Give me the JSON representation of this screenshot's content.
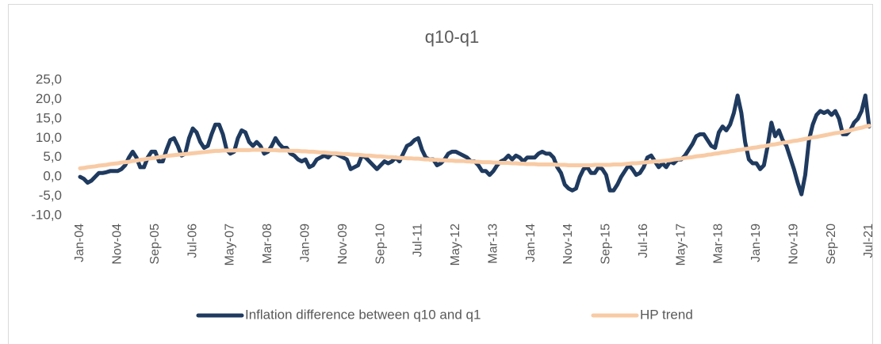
{
  "chart_data": {
    "type": "line",
    "title": "q10-q1",
    "categories": [
      "Jan-04",
      null,
      null,
      null,
      null,
      null,
      null,
      null,
      null,
      null,
      "Nov-04",
      null,
      null,
      null,
      null,
      null,
      null,
      null,
      null,
      null,
      "Sep-05",
      null,
      null,
      null,
      null,
      null,
      null,
      null,
      null,
      null,
      "Jul-06",
      null,
      null,
      null,
      null,
      null,
      null,
      null,
      null,
      null,
      "May-07",
      null,
      null,
      null,
      null,
      null,
      null,
      null,
      null,
      null,
      "Mar-08",
      null,
      null,
      null,
      null,
      null,
      null,
      null,
      null,
      null,
      "Jan-09",
      null,
      null,
      null,
      null,
      null,
      null,
      null,
      null,
      null,
      "Nov-09",
      null,
      null,
      null,
      null,
      null,
      null,
      null,
      null,
      null,
      "Sep-10",
      null,
      null,
      null,
      null,
      null,
      null,
      null,
      null,
      null,
      "Jul-11",
      null,
      null,
      null,
      null,
      null,
      null,
      null,
      null,
      null,
      "May-12",
      null,
      null,
      null,
      null,
      null,
      null,
      null,
      null,
      null,
      "Mar-13",
      null,
      null,
      null,
      null,
      null,
      null,
      null,
      null,
      null,
      "Jan-14",
      null,
      null,
      null,
      null,
      null,
      null,
      null,
      null,
      null,
      "Nov-14",
      null,
      null,
      null,
      null,
      null,
      null,
      null,
      null,
      null,
      "Sep-15",
      null,
      null,
      null,
      null,
      null,
      null,
      null,
      null,
      null,
      "Jul-16",
      null,
      null,
      null,
      null,
      null,
      null,
      null,
      null,
      null,
      "May-17",
      null,
      null,
      null,
      null,
      null,
      null,
      null,
      null,
      null,
      "Mar-18",
      null,
      null,
      null,
      null,
      null,
      null,
      null,
      null,
      null,
      "Jan-19",
      null,
      null,
      null,
      null,
      null,
      null,
      null,
      null,
      null,
      "Nov-19",
      null,
      null,
      null,
      null,
      null,
      null,
      null,
      null,
      null,
      "Sep-20",
      null,
      null,
      null,
      null,
      null,
      null,
      null,
      null,
      null,
      "Jul-21"
    ],
    "series": [
      {
        "name": "Inflation difference between q10 and q1",
        "color": "#1f3a5f",
        "values": [
          0,
          -0.5,
          -1.5,
          -1,
          0,
          1,
          1,
          1.2,
          1.5,
          1.5,
          1.5,
          2,
          3,
          5,
          6.5,
          5,
          2.5,
          2.5,
          5,
          6.5,
          6.5,
          4,
          4,
          7,
          9.5,
          10,
          8,
          5.5,
          6,
          10,
          12.5,
          11.5,
          9,
          7.5,
          8,
          11,
          13.5,
          13.5,
          11,
          7,
          6,
          6.5,
          10,
          12,
          11.5,
          9,
          8,
          9,
          8,
          6,
          6.5,
          8,
          10,
          8.5,
          7.5,
          7.5,
          6,
          5.5,
          4.5,
          4,
          4.5,
          2.5,
          3,
          4.5,
          5,
          5.5,
          5,
          6,
          6,
          5.5,
          5,
          4.5,
          2,
          2.5,
          3,
          5.5,
          5,
          4,
          3,
          2,
          3,
          4,
          3.5,
          4,
          5,
          4,
          6,
          8,
          8.5,
          9.5,
          10,
          7,
          5,
          4.5,
          4.5,
          3,
          3.5,
          4.5,
          6,
          6.5,
          6.5,
          6,
          5.5,
          5,
          4,
          4,
          3,
          1.5,
          1.5,
          0.5,
          1.5,
          3,
          4,
          4.5,
          5.5,
          4.5,
          5.5,
          5,
          4,
          5,
          5,
          5,
          6,
          6.5,
          6,
          6,
          5,
          2.5,
          1,
          -2,
          -3,
          -3.5,
          -3,
          0,
          2,
          2.5,
          1,
          1,
          2.5,
          2,
          0.5,
          -3.5,
          -3.5,
          -2,
          0,
          1.5,
          3,
          2,
          0.5,
          1,
          2.5,
          5,
          5.5,
          4,
          2.5,
          3.5,
          2.5,
          4,
          3.5,
          4.5,
          4.5,
          5.5,
          7,
          8.5,
          10.5,
          11,
          11,
          9.5,
          8,
          7.5,
          11.5,
          13,
          12,
          13.5,
          16.5,
          21,
          16.5,
          9,
          4.5,
          3.5,
          3.5,
          2,
          3,
          8,
          14,
          10.5,
          12,
          9.5,
          8,
          5,
          2,
          -1.5,
          -4.5,
          0.5,
          9.5,
          13.5,
          16,
          17,
          16.5,
          17,
          16,
          17,
          15,
          11,
          11,
          12,
          14,
          15,
          17,
          21,
          13
        ]
      },
      {
        "name": "HP trend",
        "color": "#f8cba5",
        "values": [
          2.2,
          2.3,
          2.5,
          2.6,
          2.7,
          2.9,
          3.0,
          3.1,
          3.3,
          3.4,
          3.5,
          3.7,
          3.8,
          3.9,
          4.1,
          4.2,
          4.4,
          4.5,
          4.7,
          4.8,
          4.9,
          5.1,
          5.2,
          5.4,
          5.5,
          5.6,
          5.7,
          5.8,
          5.9,
          6.0,
          6.1,
          6.2,
          6.3,
          6.4,
          6.5,
          6.6,
          6.7,
          6.7,
          6.8,
          6.8,
          6.8,
          6.8,
          6.9,
          6.9,
          6.9,
          6.9,
          7.0,
          7.0,
          7.0,
          7.0,
          6.9,
          6.9,
          6.9,
          6.8,
          6.8,
          6.8,
          6.7,
          6.7,
          6.7,
          6.6,
          6.6,
          6.5,
          6.5,
          6.4,
          6.3,
          6.3,
          6.2,
          6.1,
          6.1,
          6.0,
          5.9,
          5.9,
          5.8,
          5.7,
          5.7,
          5.6,
          5.5,
          5.5,
          5.4,
          5.3,
          5.3,
          5.2,
          5.1,
          5.1,
          5.0,
          4.9,
          4.9,
          4.8,
          4.8,
          4.7,
          4.7,
          4.6,
          4.5,
          4.5,
          4.4,
          4.4,
          4.3,
          4.3,
          4.2,
          4.2,
          4.1,
          4.1,
          4.1,
          4.0,
          4.0,
          3.9,
          3.9,
          3.8,
          3.8,
          3.8,
          3.7,
          3.7,
          3.6,
          3.6,
          3.6,
          3.5,
          3.5,
          3.4,
          3.4,
          3.3,
          3.3,
          3.3,
          3.2,
          3.2,
          3.2,
          3.2,
          3.2,
          3.1,
          3.1,
          3.1,
          3.0,
          3.0,
          3.0,
          3.0,
          3.0,
          3.0,
          3.0,
          3.1,
          3.1,
          3.1,
          3.1,
          3.1,
          3.2,
          3.2,
          3.2,
          3.3,
          3.4,
          3.5,
          3.5,
          3.6,
          3.7,
          3.8,
          3.9,
          4.0,
          4.0,
          4.1,
          4.2,
          4.3,
          4.5,
          4.6,
          4.7,
          4.9,
          5.0,
          5.1,
          5.3,
          5.4,
          5.5,
          5.7,
          5.8,
          6.0,
          6.1,
          6.3,
          6.4,
          6.6,
          6.7,
          6.9,
          7.0,
          7.2,
          7.3,
          7.5,
          7.6,
          7.8,
          7.9,
          8.1,
          8.3,
          8.4,
          8.6,
          8.8,
          8.9,
          9.1,
          9.3,
          9.4,
          9.6,
          9.8,
          10.0,
          10.2,
          10.3,
          10.5,
          10.7,
          10.9,
          11.1,
          11.3,
          11.4,
          11.6,
          11.8,
          12.0,
          12.3,
          12.5,
          12.7,
          13.0,
          13.2
        ]
      }
    ],
    "ylim": [
      -10,
      25
    ],
    "yticks": [
      {
        "value": -10,
        "label": "-10,0"
      },
      {
        "value": -5,
        "label": "-5,0"
      },
      {
        "value": 0,
        "label": "0,0"
      },
      {
        "value": 5,
        "label": "5,0"
      },
      {
        "value": 10,
        "label": "10,0"
      },
      {
        "value": 15,
        "label": "15,0"
      },
      {
        "value": 20,
        "label": "20,0"
      },
      {
        "value": 25,
        "label": "25,0"
      }
    ],
    "grid": false,
    "legend": "bottom"
  }
}
